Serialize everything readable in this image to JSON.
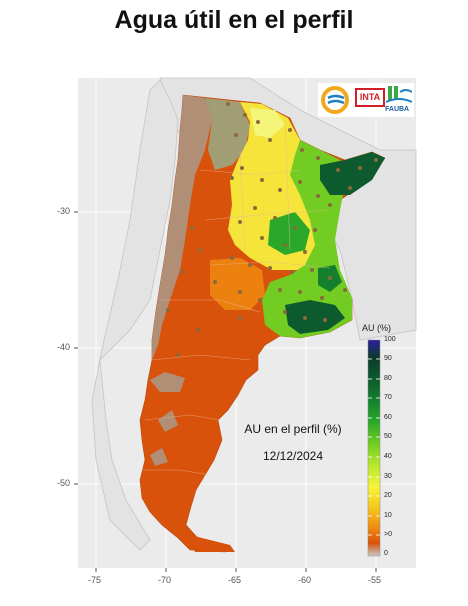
{
  "title": "Agua útil en el perfil",
  "map": {
    "caption": "AU en el perfil (%)",
    "date": "12/12/2024",
    "x_ticks": [
      "-75",
      "-70",
      "-65",
      "-60",
      "-55"
    ],
    "y_ticks": [
      "-30",
      "-40",
      "-50"
    ]
  },
  "legend": {
    "title": "AU (%)",
    "ticks": [
      "100",
      "90",
      "80",
      "70",
      "60",
      "50",
      "40",
      "30",
      "20",
      "10",
      ">0",
      "0"
    ],
    "colors": [
      "#2b1f9e",
      "#0b3a2a",
      "#0d5a2e",
      "#14802e",
      "#2aa82a",
      "#72cc22",
      "#b8e830",
      "#f5f53a",
      "#f5c51c",
      "#f08a12",
      "#d9520b",
      "#c9c9c9"
    ]
  },
  "logos": {
    "inta": "INTA",
    "fauba": "FAUBA"
  },
  "colors": {
    "dry": "#d9520b",
    "no_data": "#a89a8a",
    "dot": "#8a6a3a"
  }
}
